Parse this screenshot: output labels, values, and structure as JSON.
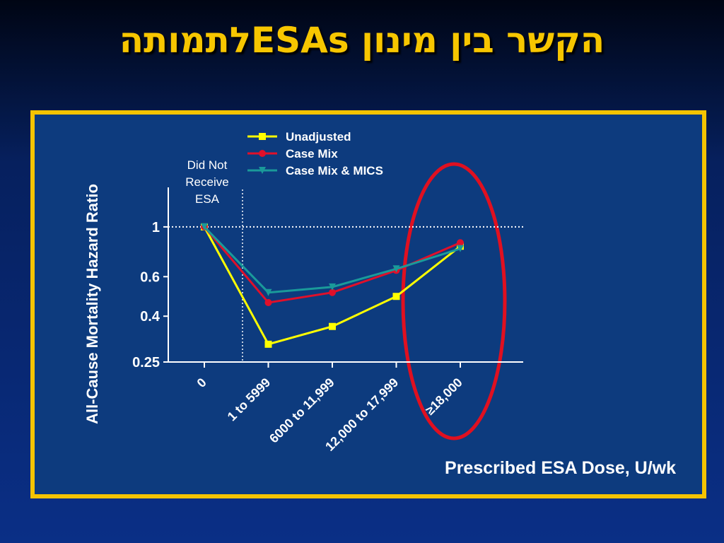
{
  "title": "הקשר בין מינון  ESAsלתמותה",
  "chart_data": {
    "type": "line",
    "categories": [
      "0",
      "1 to 5999",
      "6000 to 11,999",
      "12,000 to 17,999",
      "≥18,000"
    ],
    "series": [
      {
        "name": "Unadjusted",
        "color": "#ffff00",
        "marker": "square",
        "values": [
          1.0,
          0.3,
          0.36,
          0.49,
          0.82
        ]
      },
      {
        "name": "Case Mix",
        "color": "#e0102a",
        "marker": "circle",
        "values": [
          1.0,
          0.46,
          0.51,
          0.64,
          0.85
        ]
      },
      {
        "name": "Case Mix & MICS",
        "color": "#1a9a9a",
        "marker": "triangle",
        "values": [
          1.0,
          0.51,
          0.54,
          0.65,
          0.8
        ]
      }
    ],
    "ylim": [
      0.25,
      1.5
    ],
    "yticks": [
      0.25,
      0.4,
      0.6,
      1
    ],
    "log_y": true,
    "ylabel": "All-Cause Mortality Hazard Ratio",
    "xlabel": "Prescribed ESA Dose, U/wk",
    "annotation": [
      "Did Not",
      "Receive",
      "ESA"
    ],
    "reference_line": 1
  }
}
